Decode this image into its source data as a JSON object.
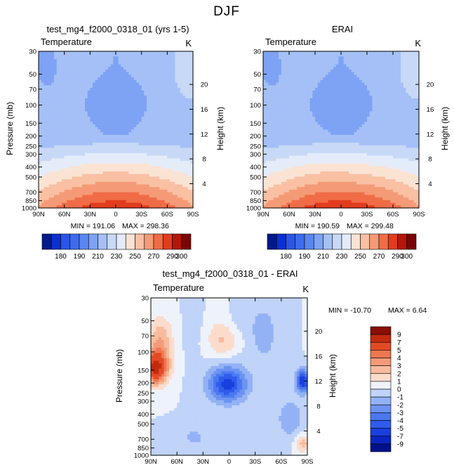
{
  "figure": {
    "title": "DJF"
  },
  "chart_data": [
    {
      "type": "heatmap",
      "title": "test_mg4_f2000_0318_01 (yrs 1-5)",
      "variable": "Temperature",
      "units": "K",
      "xlabel": "",
      "ylabel": "Pressure (mb)",
      "ylabel_right": "Height (km)",
      "x_ticks": [
        "90N",
        "60N",
        "30N",
        "0",
        "30S",
        "60S",
        "90S"
      ],
      "y_ticks": [
        "30",
        "50",
        "70",
        "100",
        "150",
        "200",
        "250",
        "300",
        "400",
        "500",
        "700",
        "850",
        "1000"
      ],
      "y_ticks_right": [
        "4",
        "8",
        "12",
        "16",
        "20"
      ],
      "y_scale": "log",
      "ylim": [
        1000,
        30
      ],
      "min_label": "MIN = 191.06",
      "max_label": "MAX = 298.36",
      "levels": [
        175,
        180,
        185,
        190,
        200,
        210,
        220,
        230,
        240,
        250,
        260,
        270,
        280,
        290,
        300
      ],
      "colorbar_ticks": [
        "180",
        "190",
        "210",
        "230",
        "250",
        "270",
        "290",
        "300"
      ],
      "colors": [
        "#001a8c",
        "#0b2fd2",
        "#2a55e6",
        "#3d6bee",
        "#5a86f0",
        "#7ea2f4",
        "#a4c0f6",
        "#c8d9f7",
        "#e4ecfa",
        "#fbe3d3",
        "#f9c0a3",
        "#f59a76",
        "#f06c47",
        "#e23c1e",
        "#b31708",
        "#7a0505"
      ]
    },
    {
      "type": "heatmap",
      "title": "ERAI",
      "variable": "Temperature",
      "units": "K",
      "xlabel": "",
      "ylabel": "Pressure (mb)",
      "ylabel_right": "Height (km)",
      "x_ticks": [
        "90N",
        "60N",
        "30N",
        "0",
        "30S",
        "60S",
        "90S"
      ],
      "y_ticks": [
        "30",
        "50",
        "70",
        "100",
        "150",
        "200",
        "250",
        "300",
        "400",
        "500",
        "700",
        "850",
        "1000"
      ],
      "y_ticks_right": [
        "4",
        "8",
        "12",
        "16",
        "20"
      ],
      "y_scale": "log",
      "ylim": [
        1000,
        30
      ],
      "min_label": "MIN = 190.59",
      "max_label": "MAX = 299.48",
      "levels": [
        175,
        180,
        185,
        190,
        200,
        210,
        220,
        230,
        240,
        250,
        260,
        270,
        280,
        290,
        300
      ],
      "colorbar_ticks": [
        "180",
        "190",
        "210",
        "230",
        "250",
        "270",
        "290",
        "300"
      ],
      "colors": [
        "#001a8c",
        "#0b2fd2",
        "#2a55e6",
        "#3d6bee",
        "#5a86f0",
        "#7ea2f4",
        "#a4c0f6",
        "#c8d9f7",
        "#e4ecfa",
        "#fbe3d3",
        "#f9c0a3",
        "#f59a76",
        "#f06c47",
        "#e23c1e",
        "#b31708",
        "#7a0505"
      ]
    },
    {
      "type": "heatmap",
      "title": "test_mg4_f2000_0318_01 - ERAI",
      "variable": "Temperature",
      "units": "K",
      "xlabel": "",
      "ylabel": "Pressure (mb)",
      "ylabel_right": "Height (km)",
      "x_ticks": [
        "90N",
        "60N",
        "30N",
        "0",
        "30S",
        "60S",
        "90S"
      ],
      "y_ticks": [
        "30",
        "50",
        "70",
        "100",
        "150",
        "200",
        "250",
        "300",
        "400",
        "500",
        "700",
        "850",
        "1000"
      ],
      "y_ticks_right": [
        "4",
        "8",
        "12",
        "16",
        "20"
      ],
      "y_scale": "log",
      "ylim": [
        1000,
        30
      ],
      "min_label": "MIN = -10.70",
      "max_label": "MAX =    6.64",
      "levels": [
        -9,
        -7,
        -5,
        -4,
        -3,
        -2,
        -1,
        0,
        1,
        2,
        3,
        4,
        5,
        7,
        9
      ],
      "colorbar_ticks": [
        "9",
        "7",
        "5",
        "4",
        "3",
        "2",
        "1",
        "0",
        "-1",
        "-2",
        "-3",
        "-4",
        "-5",
        "-7",
        "-9"
      ],
      "colors": [
        "#00128a",
        "#0a25c0",
        "#1a3fe0",
        "#2f5ced",
        "#4a78f0",
        "#6c93f2",
        "#93b2f5",
        "#c0d3f8",
        "#eef2fb",
        "#fbdccb",
        "#f8bb9d",
        "#f39a78",
        "#ee7650",
        "#e24a26",
        "#c22a0e",
        "#8a0e03"
      ]
    }
  ]
}
